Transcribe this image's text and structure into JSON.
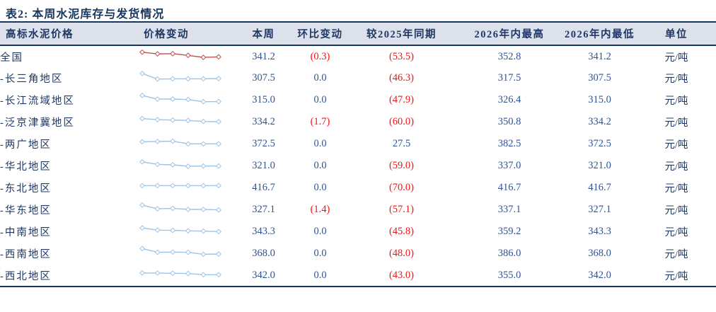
{
  "title": "表2:  本周水泥库存与发货情况",
  "colors": {
    "title_navy": "#17375e",
    "header_text": "#1f3864",
    "header_bg": "#dce1ec",
    "value_blue": "#2e5394",
    "negative_red": "#f01414",
    "sparkline_national": "#c0504d",
    "sparkline_region": "#9dc3e6",
    "border_navy": "#17375e"
  },
  "table": {
    "headers": [
      "高标水泥价格",
      "价格变动",
      "本周",
      "环比变动",
      "较2025年同期",
      "2026年内最高",
      "2026年内最低",
      "单位"
    ],
    "rows": [
      {
        "region": "全国",
        "spark_color": "#c0504d",
        "spark": [
          9.0,
          7.6,
          7.8,
          6.4,
          4.8,
          5.2
        ],
        "week": "341.2",
        "wow": "(0.3)",
        "yoy": "(53.5)",
        "high": "352.8",
        "low": "341.2",
        "unit": "元/吨"
      },
      {
        "region": "-长三角地区",
        "spark_color": "#9dc3e6",
        "spark": [
          9.5,
          5.0,
          5.2,
          5.2,
          5.2,
          5.4
        ],
        "week": "307.5",
        "wow": "0.0",
        "yoy": "(46.3)",
        "high": "317.5",
        "low": "307.5",
        "unit": "元/吨"
      },
      {
        "region": "-长江流域地区",
        "spark_color": "#9dc3e6",
        "spark": [
          9.5,
          6.5,
          6.6,
          6.2,
          4.4,
          4.6
        ],
        "week": "315.0",
        "wow": "0.0",
        "yoy": "(47.9)",
        "high": "326.4",
        "low": "315.0",
        "unit": "元/吨"
      },
      {
        "region": "-泛京津冀地区",
        "spark_color": "#9dc3e6",
        "spark": [
          8.5,
          7.6,
          7.3,
          7.0,
          6.2,
          6.0
        ],
        "week": "334.2",
        "wow": "(1.7)",
        "yoy": "(60.0)",
        "high": "350.8",
        "low": "334.2",
        "unit": "元/吨"
      },
      {
        "region": "-两广地区",
        "spark_color": "#9dc3e6",
        "spark": [
          7.5,
          7.7,
          8.0,
          5.8,
          5.8,
          5.8
        ],
        "week": "372.5",
        "wow": "0.0",
        "yoy": "27.5",
        "high": "382.5",
        "low": "372.5",
        "unit": "元/吨"
      },
      {
        "region": "-华北地区",
        "spark_color": "#9dc3e6",
        "spark": [
          9.0,
          7.0,
          6.6,
          5.4,
          5.6,
          5.6
        ],
        "week": "321.0",
        "wow": "0.0",
        "yoy": "(59.0)",
        "high": "337.0",
        "low": "321.0",
        "unit": "元/吨"
      },
      {
        "region": "-东北地区",
        "spark_color": "#9dc3e6",
        "spark": [
          7.5,
          7.5,
          7.5,
          7.5,
          7.5,
          7.5
        ],
        "week": "416.7",
        "wow": "0.0",
        "yoy": "(70.0)",
        "high": "416.7",
        "low": "416.7",
        "unit": "元/吨"
      },
      {
        "region": "-华东地区",
        "spark_color": "#9dc3e6",
        "spark": [
          9.5,
          6.5,
          6.8,
          6.0,
          6.0,
          5.6
        ],
        "week": "327.1",
        "wow": "(1.4)",
        "yoy": "(57.1)",
        "high": "337.1",
        "low": "327.1",
        "unit": "元/吨"
      },
      {
        "region": "-中南地区",
        "spark_color": "#9dc3e6",
        "spark": [
          8.8,
          7.0,
          6.8,
          6.4,
          6.2,
          5.8
        ],
        "week": "343.3",
        "wow": "0.0",
        "yoy": "(45.8)",
        "high": "359.2",
        "low": "343.3",
        "unit": "元/吨"
      },
      {
        "region": "-西南地区",
        "spark_color": "#9dc3e6",
        "spark": [
          9.8,
          6.8,
          7.0,
          6.8,
          5.2,
          5.4
        ],
        "week": "368.0",
        "wow": "0.0",
        "yoy": "(48.0)",
        "high": "386.0",
        "low": "368.0",
        "unit": "元/吨"
      },
      {
        "region": "-西北地区",
        "spark_color": "#9dc3e6",
        "spark": [
          7.2,
          7.2,
          7.0,
          6.8,
          5.8,
          5.8
        ],
        "week": "342.0",
        "wow": "0.0",
        "yoy": "(43.0)",
        "high": "355.0",
        "low": "342.0",
        "unit": "元/吨"
      }
    ]
  }
}
